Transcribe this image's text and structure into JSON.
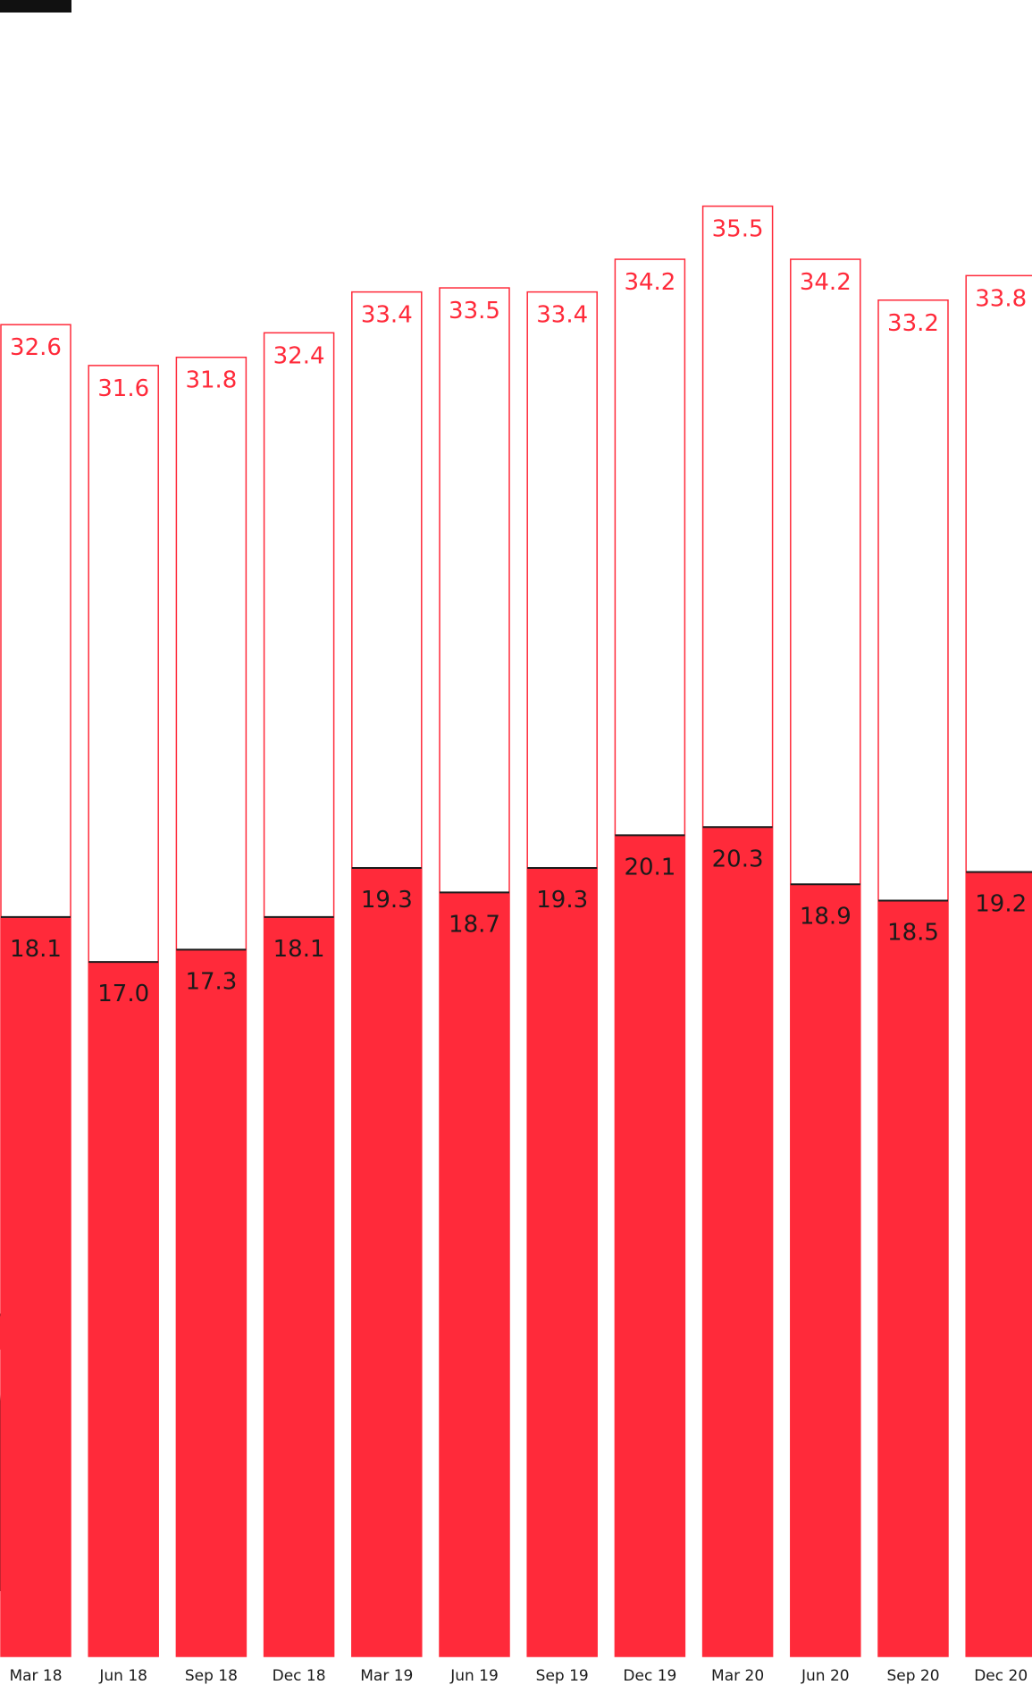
{
  "colors": {
    "accent": "#ff2a3a",
    "text": "#1a1a1a",
    "background": "#ffffff"
  },
  "chart_data": {
    "type": "bar",
    "stacked_overlay": true,
    "categories": [
      "Mar 18",
      "Jun 18",
      "Sep 18",
      "Dec 18",
      "Mar 19",
      "Jun 19",
      "Sep 19",
      "Dec 19",
      "Mar 20",
      "Jun 20",
      "Sep 20",
      "Dec 20"
    ],
    "series": [
      {
        "values": [
          32.6,
          31.6,
          31.8,
          32.4,
          33.4,
          33.5,
          33.4,
          34.2,
          35.5,
          34.2,
          33.2,
          33.8
        ],
        "style": "outline"
      },
      {
        "values": [
          18.1,
          17.0,
          17.3,
          18.1,
          19.3,
          18.7,
          19.3,
          20.1,
          20.3,
          18.9,
          18.5,
          19.2
        ],
        "style": "filled"
      }
    ],
    "title": "",
    "xlabel": "",
    "ylabel": "",
    "ylim": [
      0,
      36
    ],
    "grid": false,
    "legend": "none",
    "value_format": "0.0"
  }
}
